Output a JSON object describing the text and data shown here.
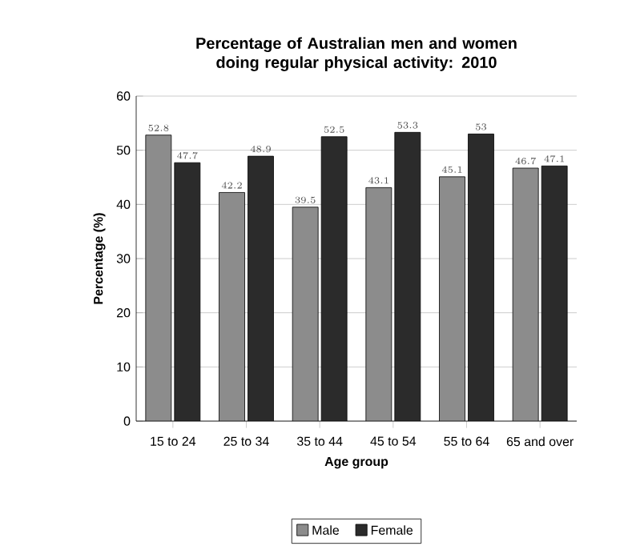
{
  "chart_data": {
    "type": "bar",
    "title": "Percentage of Australian men and women doing regular physical activity: 2010",
    "xlabel": "Age group",
    "ylabel": "Percentage (%)",
    "categories": [
      "15 to 24",
      "25 to 34",
      "35 to 44",
      "45 to 54",
      "55 to 64",
      "65 and over"
    ],
    "series": [
      {
        "name": "Male",
        "color": "#8c8c8c",
        "values": [
          52.8,
          42.2,
          39.5,
          43.1,
          45.1,
          46.7
        ]
      },
      {
        "name": "Female",
        "color": "#2b2b2b",
        "values": [
          47.7,
          48.9,
          52.5,
          53.3,
          53,
          47.1
        ]
      }
    ],
    "ylim": [
      0,
      60
    ],
    "yticks": [
      0,
      10,
      20,
      30,
      40,
      50,
      60
    ],
    "grid": "y",
    "data_labels": true,
    "legend": "bottom"
  }
}
